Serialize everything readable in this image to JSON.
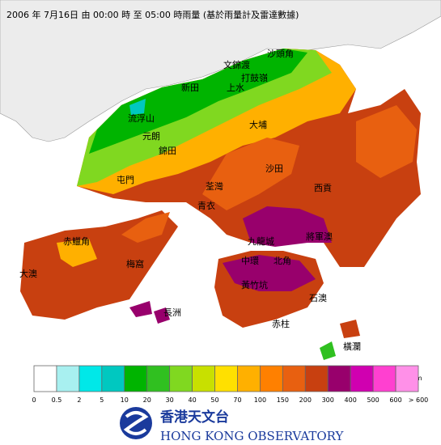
{
  "title": "2006 年  7月16日 由 00:00 時 至 05:00 時雨量 (基於雨量計及雷達數據)",
  "places": [
    "沙頭角",
    "文錦渡",
    "打鼓嶺",
    "新田",
    "上水",
    "流浮山",
    "元朗",
    "錦田",
    "大埔",
    "屯門",
    "沙田",
    "荃灣",
    "青衣",
    "西貢",
    "赤鱲角",
    "大澳",
    "梅窩",
    "長洲",
    "九龍城",
    "將軍澳",
    "中環",
    "北角",
    "黃竹坑",
    "石澳",
    "赤柱",
    "橫瀾"
  ],
  "legend": {
    "unit": "mm",
    "labels": [
      "0",
      "0.5",
      "2",
      "5",
      "10",
      "20",
      "30",
      "40",
      "50",
      "70",
      "100",
      "150",
      "200",
      "300",
      "400",
      "500",
      "600",
      "> 600"
    ],
    "colors": [
      "#ffffff",
      "#a8f0f0",
      "#00e8e8",
      "#00c8c0",
      "#00b400",
      "#30c020",
      "#80d820",
      "#c8e000",
      "#ffe000",
      "#ffb000",
      "#ff8000",
      "#e86010",
      "#c84010",
      "#98006c",
      "#d000b0",
      "#ff40d0",
      "#ff90e8"
    ]
  },
  "logo": {
    "chinese": "香港天文台",
    "english": "HONG KONG OBSERVATORY"
  }
}
